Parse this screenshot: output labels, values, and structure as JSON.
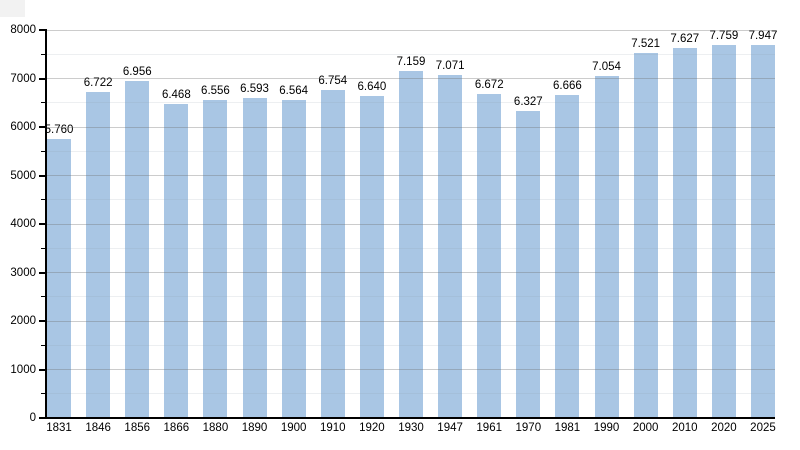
{
  "page": {
    "background_color": "#ffffff",
    "corner_artifact_color": "#f2f2f2"
  },
  "chart_data": {
    "type": "bar",
    "title": "",
    "xlabel": "",
    "ylabel": "",
    "categories": [
      "1831",
      "1846",
      "1856",
      "1866",
      "1880",
      "1890",
      "1900",
      "1910",
      "1920",
      "1930",
      "1947",
      "1961",
      "1970",
      "1981",
      "1990",
      "2000",
      "2010",
      "2020",
      "2025"
    ],
    "values": [
      5760,
      6722,
      6956,
      6468,
      6556,
      6593,
      6564,
      6754,
      6640,
      7159,
      7071,
      6672,
      6327,
      6666,
      7054,
      7521,
      7627,
      7759,
      7947
    ],
    "value_labels": [
      "5.760",
      "6.722",
      "6.956",
      "6.468",
      "6.556",
      "6.593",
      "6.564",
      "6.754",
      "6.640",
      "7.159",
      "7.071",
      "6.672",
      "6.327",
      "6.666",
      "7.054",
      "7.521",
      "7.627",
      "7.759",
      "7.947"
    ],
    "ylim": [
      0,
      8000
    ],
    "y_major_tick_step": 1000,
    "y_minor_tick_step": 500,
    "y_tick_labels": [
      "0",
      "1000",
      "2000",
      "3000",
      "4000",
      "5000",
      "6000",
      "7000",
      "8000"
    ],
    "bar_color": "#a9c6e4",
    "axis_color": "#000000",
    "grid": "horizontal",
    "legend_position": "none"
  }
}
